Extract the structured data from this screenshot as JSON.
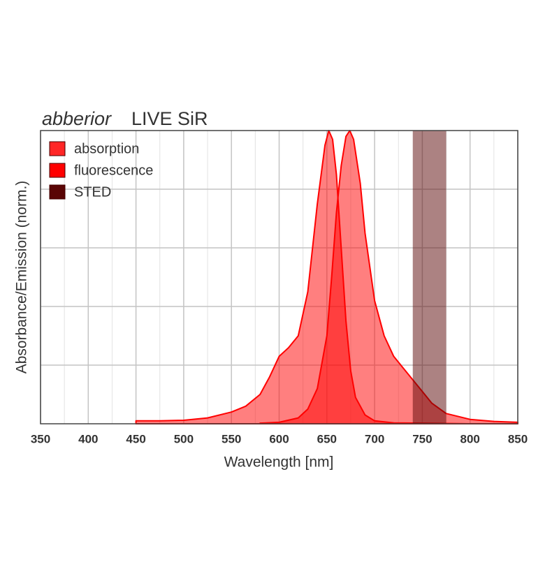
{
  "chart_data": {
    "type": "area",
    "brand": "abberior",
    "title": "LIVE SiR",
    "xlabel": "Wavelength [nm]",
    "ylabel": "Absorbance/Emission (norm.)",
    "xlim": [
      350,
      850
    ],
    "xticks": [
      350,
      400,
      450,
      500,
      550,
      600,
      650,
      700,
      750,
      800,
      850
    ],
    "xminor": [
      375,
      425,
      475,
      525,
      575,
      625,
      675,
      725,
      775,
      825
    ],
    "ylim": [
      0,
      1
    ],
    "ygrid": [
      0.2,
      0.4,
      0.6,
      0.8
    ],
    "grid": true,
    "legend": "upper left",
    "series": [
      {
        "name": "absorption",
        "color": "#ff0000",
        "x": [
          450,
          475,
          500,
          525,
          550,
          565,
          580,
          590,
          600,
          610,
          620,
          630,
          640,
          648,
          652,
          656,
          660,
          665,
          670,
          675,
          680,
          690,
          700,
          720,
          750,
          800
        ],
        "values": [
          0.01,
          0.01,
          0.012,
          0.02,
          0.04,
          0.06,
          0.1,
          0.16,
          0.23,
          0.26,
          0.3,
          0.45,
          0.75,
          0.95,
          1.0,
          0.97,
          0.85,
          0.6,
          0.35,
          0.18,
          0.09,
          0.03,
          0.01,
          0.003,
          0.002,
          0
        ]
      },
      {
        "name": "fluorescence",
        "color": "#ff0000",
        "x": [
          580,
          600,
          620,
          630,
          640,
          650,
          655,
          660,
          665,
          670,
          674,
          678,
          685,
          690,
          700,
          710,
          720,
          730,
          740,
          750,
          760,
          775,
          800,
          825,
          850
        ],
        "values": [
          0.002,
          0.005,
          0.02,
          0.05,
          0.12,
          0.3,
          0.5,
          0.72,
          0.88,
          0.98,
          1.0,
          0.97,
          0.82,
          0.65,
          0.42,
          0.3,
          0.23,
          0.19,
          0.15,
          0.11,
          0.07,
          0.035,
          0.015,
          0.008,
          0.005
        ]
      }
    ],
    "sted": {
      "name": "STED",
      "color": "#5a0505",
      "range": [
        740,
        775
      ]
    }
  }
}
